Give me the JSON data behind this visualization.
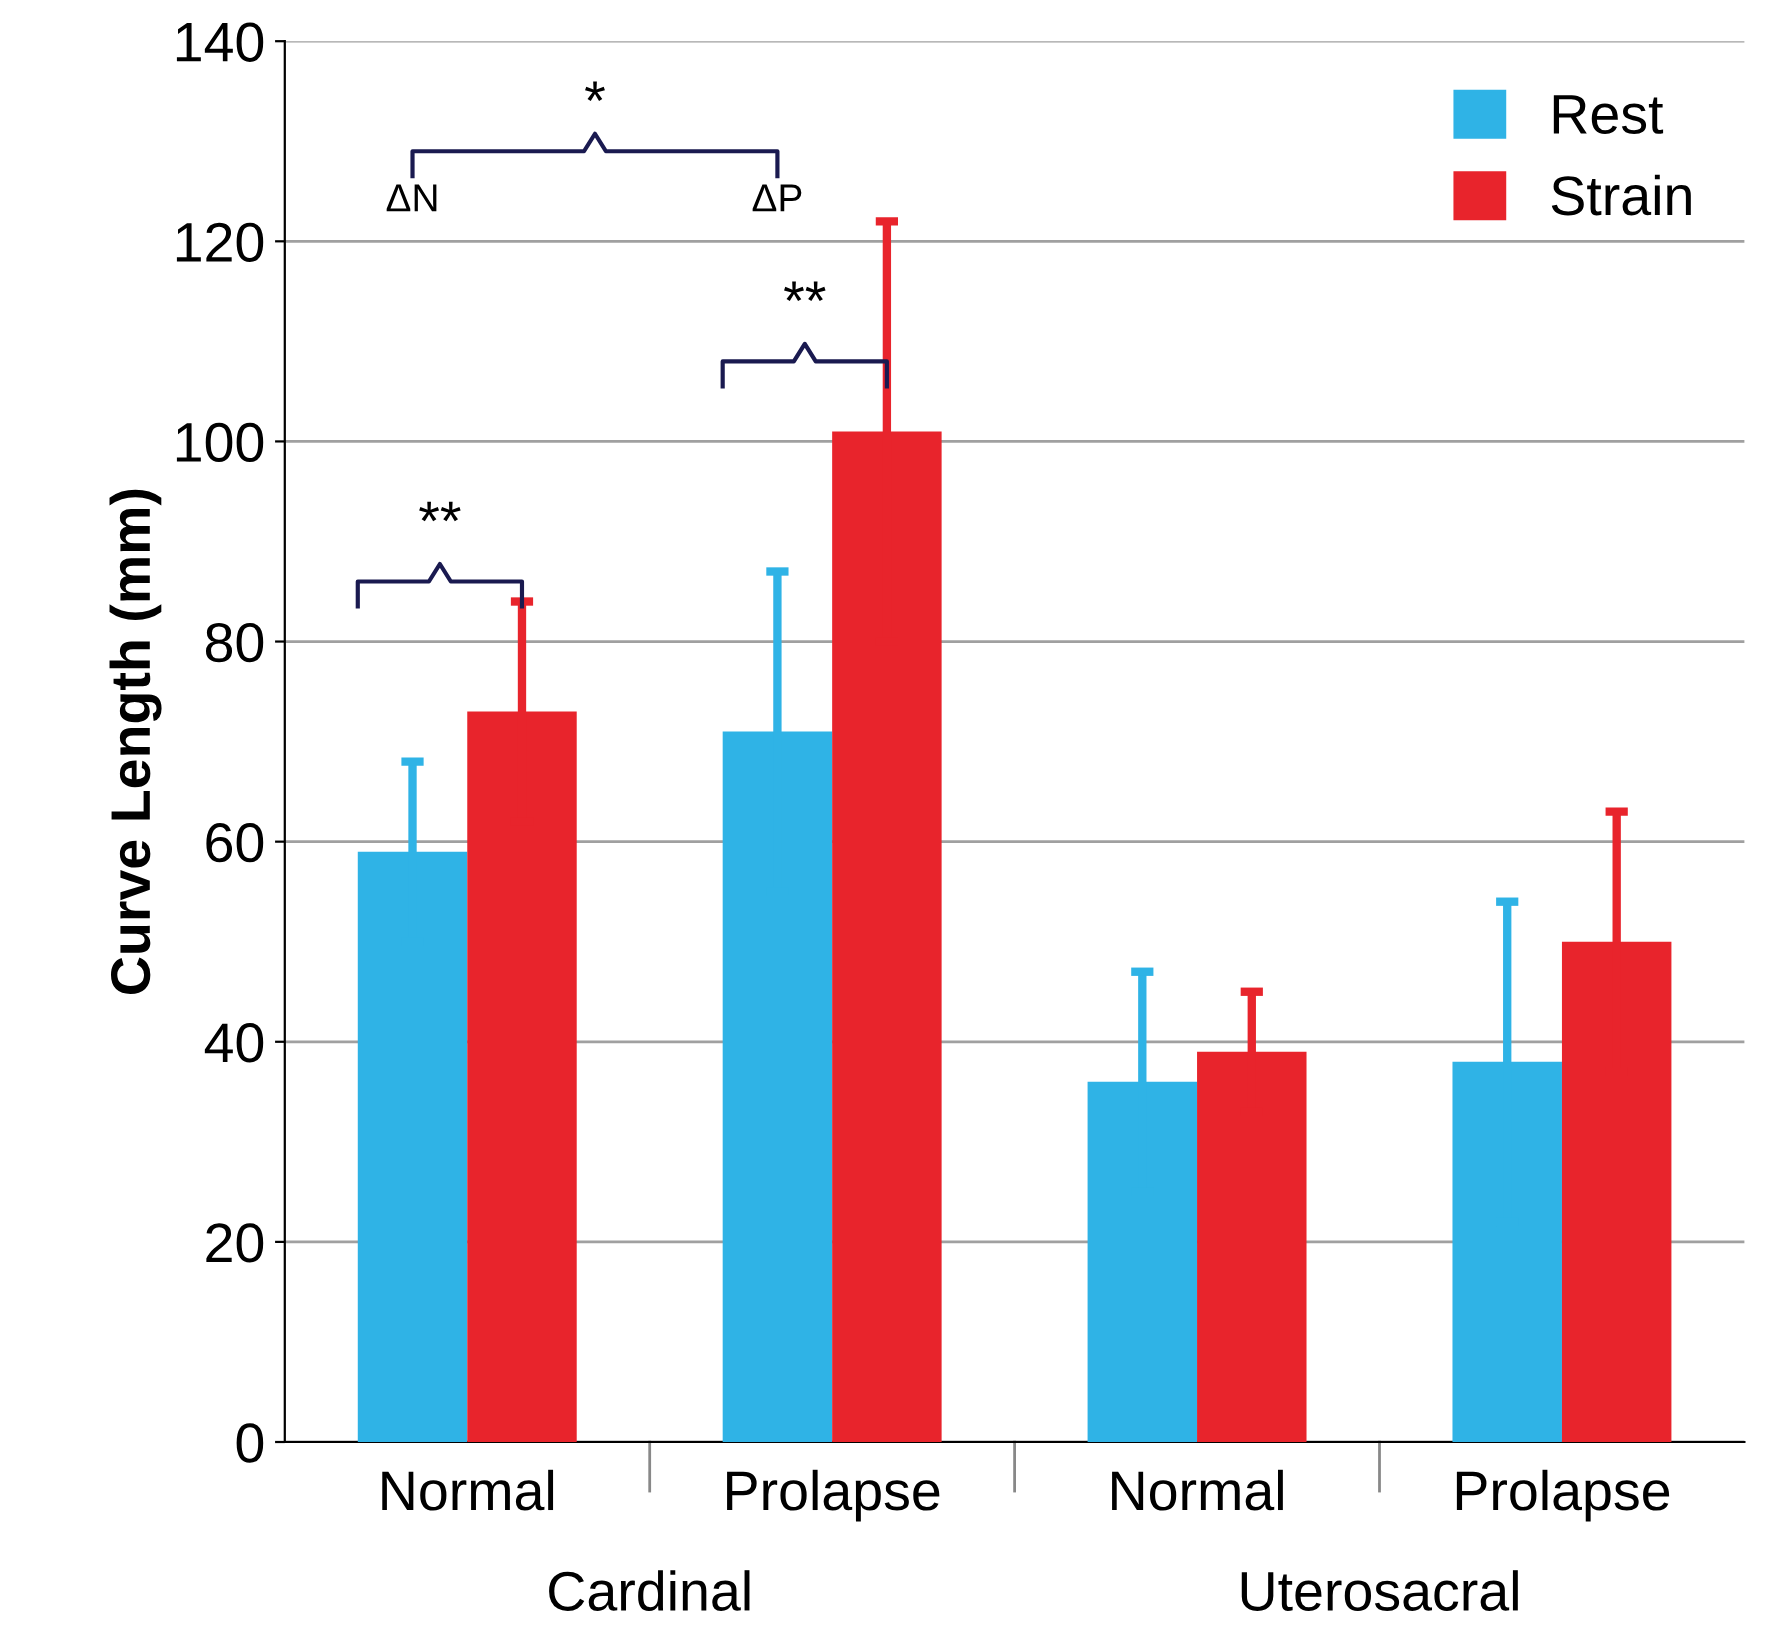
{
  "chart_data": {
    "type": "bar",
    "ylabel": "Curve Length (mm)",
    "categories": [
      "Normal",
      "Prolapse",
      "Normal",
      "Prolapse"
    ],
    "series": [
      {
        "name": "Rest",
        "color": "#2fb3e6",
        "values": [
          59,
          71,
          36,
          38
        ],
        "errors": [
          9,
          16,
          11,
          16
        ]
      },
      {
        "name": "Strain",
        "color": "#e8242c",
        "values": [
          73,
          101,
          39,
          50
        ],
        "errors": [
          11,
          21,
          6,
          13
        ]
      }
    ],
    "ylim": [
      0,
      140
    ],
    "yticks": [
      0,
      20,
      40,
      60,
      80,
      100,
      120,
      140
    ],
    "grid": "y",
    "legend": "top right",
    "annotations": [
      "**",
      "**",
      "*",
      "ΔN",
      "ΔP",
      "Cardinal",
      "Uterosacral"
    ]
  }
}
